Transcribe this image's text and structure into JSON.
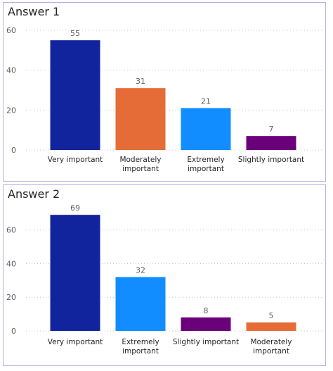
{
  "chart_data": [
    {
      "type": "bar",
      "title": "Answer 1",
      "categories": [
        [
          "Very important"
        ],
        [
          "Moderately",
          "important"
        ],
        [
          "Extremely",
          "important"
        ],
        [
          "Slightly important"
        ]
      ],
      "values": [
        55,
        31,
        21,
        7
      ],
      "colors": [
        "#12239e",
        "#e66c37",
        "#118dff",
        "#6b007b"
      ],
      "yticks": [
        0,
        20,
        40,
        60
      ],
      "ylim": [
        0,
        60
      ],
      "grid": true,
      "xlabel": "",
      "ylabel": ""
    },
    {
      "type": "bar",
      "title": "Answer 2",
      "categories": [
        [
          "Very important"
        ],
        [
          "Extremely",
          "important"
        ],
        [
          "Slightly important"
        ],
        [
          "Moderately",
          "important"
        ]
      ],
      "values": [
        69,
        32,
        8,
        5
      ],
      "colors": [
        "#12239e",
        "#118dff",
        "#6b007b",
        "#e66c37"
      ],
      "yticks": [
        0,
        20,
        40,
        60
      ],
      "ylim": [
        0,
        72
      ],
      "grid": true,
      "xlabel": "",
      "ylabel": ""
    }
  ]
}
